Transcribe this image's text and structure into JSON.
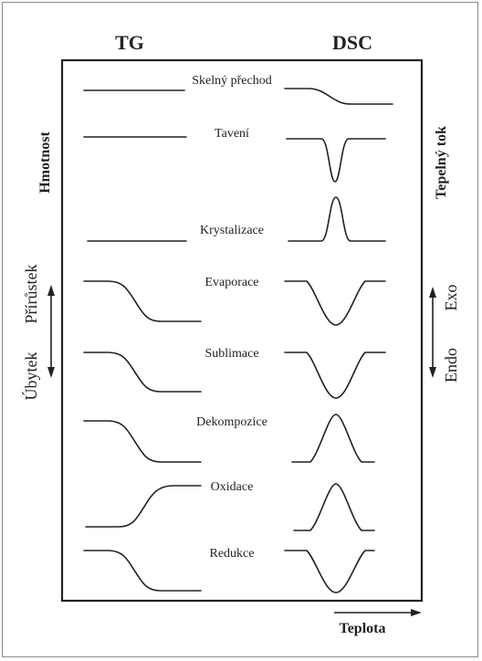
{
  "headers": {
    "tg": "TG",
    "dsc": "DSC"
  },
  "left_axis": {
    "title": "Hmotnost",
    "up": "Přírůstek",
    "down": "Úbytek"
  },
  "right_axis": {
    "title": "Tepelný tok",
    "up": "Exo",
    "down": "Endo"
  },
  "bottom_axis": {
    "label": "Teplota"
  },
  "processes": [
    {
      "name": "Skelný přechod"
    },
    {
      "name": "Tavení"
    },
    {
      "name": "Krystalizace"
    },
    {
      "name": "Evaporace"
    },
    {
      "name": "Sublimace"
    },
    {
      "name": "Dekompozice"
    },
    {
      "name": "Oxidace"
    },
    {
      "name": "Redukce"
    }
  ]
}
